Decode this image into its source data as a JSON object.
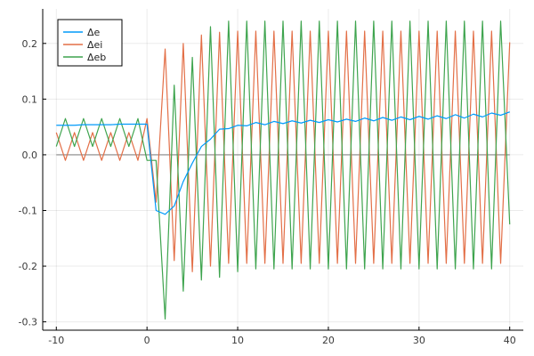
{
  "chart_data": {
    "type": "line",
    "title": "",
    "xlabel": "",
    "ylabel": "",
    "xlim": [
      -11.5,
      41.5
    ],
    "ylim": [
      -0.315,
      0.262
    ],
    "grid": true,
    "legend_position": "top-left",
    "x_ticks": [
      {
        "value": -10,
        "label": "-10"
      },
      {
        "value": 0,
        "label": "0"
      },
      {
        "value": 10,
        "label": "10"
      },
      {
        "value": 20,
        "label": "20"
      },
      {
        "value": 30,
        "label": "30"
      },
      {
        "value": 40,
        "label": "40"
      }
    ],
    "y_ticks": [
      {
        "value": -0.3,
        "label": "-0.3"
      },
      {
        "value": -0.2,
        "label": "-0.2"
      },
      {
        "value": -0.1,
        "label": "-0.1"
      },
      {
        "value": 0.0,
        "label": "0.0"
      },
      {
        "value": 0.1,
        "label": "0.1"
      },
      {
        "value": 0.2,
        "label": "0.2"
      }
    ],
    "reference_line": {
      "y": 0,
      "from_x": -10,
      "to_x": 40,
      "color": "#888888"
    },
    "x": [
      -10,
      -9,
      -8,
      -7,
      -6,
      -5,
      -4,
      -3,
      -2,
      -1,
      0,
      1,
      2,
      3,
      4,
      5,
      6,
      7,
      8,
      9,
      10,
      11,
      12,
      13,
      14,
      15,
      16,
      17,
      18,
      19,
      20,
      21,
      22,
      23,
      24,
      25,
      26,
      27,
      28,
      29,
      30,
      31,
      32,
      33,
      34,
      35,
      36,
      37,
      38,
      39,
      40
    ],
    "series": [
      {
        "name": "Δe",
        "color": "#009AFA",
        "values": [
          0.053,
          0.053,
          0.053,
          0.054,
          0.054,
          0.054,
          0.054,
          0.055,
          0.055,
          0.055,
          0.055,
          -0.1,
          -0.107,
          -0.092,
          -0.048,
          -0.015,
          0.015,
          0.028,
          0.046,
          0.047,
          0.053,
          0.052,
          0.058,
          0.054,
          0.06,
          0.056,
          0.061,
          0.057,
          0.062,
          0.058,
          0.063,
          0.059,
          0.064,
          0.06,
          0.066,
          0.061,
          0.067,
          0.062,
          0.068,
          0.063,
          0.069,
          0.064,
          0.07,
          0.065,
          0.072,
          0.066,
          0.073,
          0.068,
          0.075,
          0.071,
          0.077
        ]
      },
      {
        "name": "Δei",
        "color": "#E36F47",
        "values": [
          0.04,
          -0.01,
          0.04,
          -0.01,
          0.04,
          -0.01,
          0.04,
          -0.01,
          0.04,
          -0.01,
          0.065,
          -0.085,
          0.19,
          -0.19,
          0.2,
          -0.21,
          0.215,
          -0.2,
          0.22,
          -0.195,
          0.222,
          -0.195,
          0.222,
          -0.195,
          0.222,
          -0.195,
          0.222,
          -0.195,
          0.222,
          -0.195,
          0.222,
          -0.195,
          0.222,
          -0.195,
          0.222,
          -0.195,
          0.222,
          -0.195,
          0.222,
          -0.195,
          0.222,
          -0.195,
          0.222,
          -0.195,
          0.222,
          -0.195,
          0.222,
          -0.195,
          0.222,
          -0.195,
          0.202
        ]
      },
      {
        "name": "Δeb",
        "color": "#3EA44E",
        "values": [
          0.015,
          0.065,
          0.015,
          0.065,
          0.015,
          0.065,
          0.015,
          0.065,
          0.015,
          0.065,
          -0.01,
          -0.01,
          -0.295,
          0.125,
          -0.245,
          0.175,
          -0.225,
          0.23,
          -0.22,
          0.24,
          -0.21,
          0.24,
          -0.205,
          0.24,
          -0.205,
          0.24,
          -0.205,
          0.24,
          -0.205,
          0.24,
          -0.205,
          0.24,
          -0.205,
          0.24,
          -0.205,
          0.24,
          -0.205,
          0.24,
          -0.205,
          0.24,
          -0.205,
          0.24,
          -0.205,
          0.24,
          -0.205,
          0.24,
          -0.205,
          0.24,
          -0.205,
          0.24,
          -0.125
        ]
      }
    ]
  }
}
